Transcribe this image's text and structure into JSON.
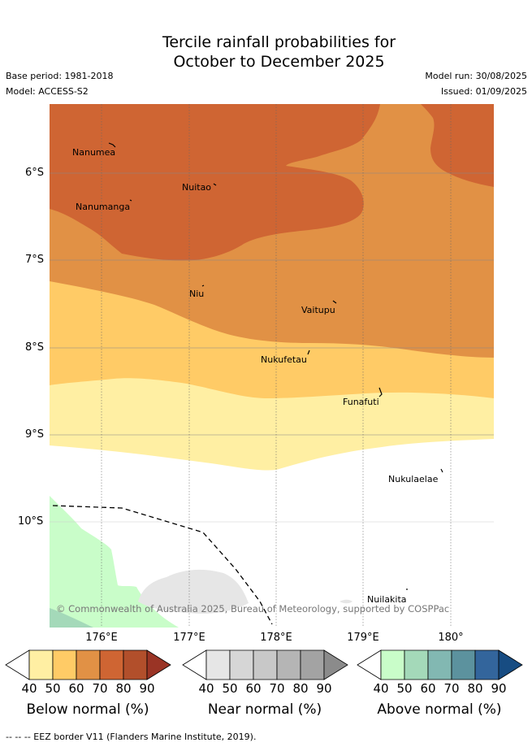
{
  "title": {
    "line1": "Tercile rainfall probabilities for",
    "line2": "October to December 2025"
  },
  "meta": {
    "base_period": "Base period: 1981-2018",
    "model": "Model: ACCESS-S2",
    "model_run": "Model run: 30/08/2025",
    "issued": "Issued: 01/09/2025"
  },
  "map": {
    "lat_labels": [
      "6°S",
      "7°S",
      "8°S",
      "9°S",
      "10°S"
    ],
    "lon_labels": [
      "176°E",
      "177°E",
      "178°E",
      "179°E",
      "180°"
    ],
    "places": [
      "Nanumea",
      "Nuitao",
      "Nanumanga",
      "Niu",
      "Vaitupu",
      "Nukufetau",
      "Funafuti",
      "Nukulaelae",
      "Nuilakita"
    ],
    "copyright": "© Commonwealth of Australia 2025, Bureau of Meteorology, supported by COSPPac"
  },
  "colorbars": [
    {
      "title": "Below normal (%)",
      "ticks": [
        "40",
        "50",
        "60",
        "70",
        "80",
        "90"
      ],
      "colors": [
        "#ffefa3",
        "#ffcb66",
        "#e19145",
        "#cf6533",
        "#b24f2b",
        "#9a3425"
      ]
    },
    {
      "title": "Near normal (%)",
      "ticks": [
        "40",
        "50",
        "60",
        "70",
        "80",
        "90"
      ],
      "colors": [
        "#e6e6e6",
        "#d6d6d6",
        "#c8c8c8",
        "#b5b5b5",
        "#a3a3a3",
        "#8b8b8b"
      ]
    },
    {
      "title": "Above normal (%)",
      "ticks": [
        "40",
        "50",
        "60",
        "70",
        "80",
        "90"
      ],
      "colors": [
        "#c9fdc9",
        "#a4d9b9",
        "#82b8b2",
        "#5c929e",
        "#33659c",
        "#174c82"
      ]
    }
  ],
  "footer": {
    "eez_legend": "--  --  -- EEZ border V11 (Flanders Marine Institute, 2019)."
  }
}
